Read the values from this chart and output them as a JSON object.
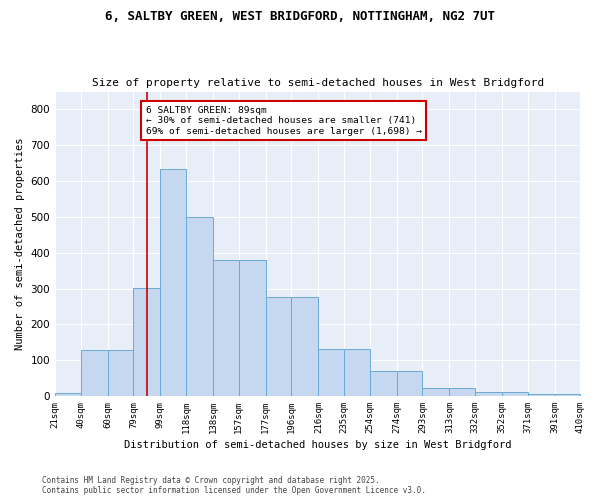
{
  "title1": "6, SALTBY GREEN, WEST BRIDGFORD, NOTTINGHAM, NG2 7UT",
  "title2": "Size of property relative to semi-detached houses in West Bridgford",
  "xlabel": "Distribution of semi-detached houses by size in West Bridgford",
  "ylabel": "Number of semi-detached properties",
  "footnote": "Contains HM Land Registry data © Crown copyright and database right 2025.\nContains public sector information licensed under the Open Government Licence v3.0.",
  "bar_edges": [
    21,
    40,
    60,
    79,
    99,
    118,
    138,
    157,
    177,
    196,
    216,
    235,
    254,
    274,
    293,
    313,
    332,
    352,
    371,
    391,
    410
  ],
  "bar_heights": [
    8,
    128,
    128,
    302,
    634,
    500,
    380,
    380,
    275,
    275,
    130,
    130,
    70,
    70,
    22,
    22,
    10,
    10,
    5,
    5
  ],
  "bar_color": "#c5d8f0",
  "bar_edgecolor": "#6aaad4",
  "bg_color": "#e8eef8",
  "grid_color": "#ffffff",
  "vline_x": 89,
  "vline_color": "#cc0000",
  "annotation_text": "6 SALTBY GREEN: 89sqm\n← 30% of semi-detached houses are smaller (741)\n69% of semi-detached houses are larger (1,698) →",
  "annotation_box_color": "#cc0000",
  "ylim": [
    0,
    850
  ],
  "yticks": [
    0,
    100,
    200,
    300,
    400,
    500,
    600,
    700,
    800
  ],
  "xtick_labels": [
    "21sqm",
    "40sqm",
    "60sqm",
    "79sqm",
    "99sqm",
    "118sqm",
    "138sqm",
    "157sqm",
    "177sqm",
    "196sqm",
    "216sqm",
    "235sqm",
    "254sqm",
    "274sqm",
    "293sqm",
    "313sqm",
    "332sqm",
    "352sqm",
    "371sqm",
    "391sqm",
    "410sqm"
  ],
  "xtick_positions": [
    21,
    40,
    60,
    79,
    99,
    118,
    138,
    157,
    177,
    196,
    216,
    235,
    254,
    274,
    293,
    313,
    332,
    352,
    371,
    391,
    410
  ],
  "fig_width": 6.0,
  "fig_height": 5.0,
  "dpi": 100
}
